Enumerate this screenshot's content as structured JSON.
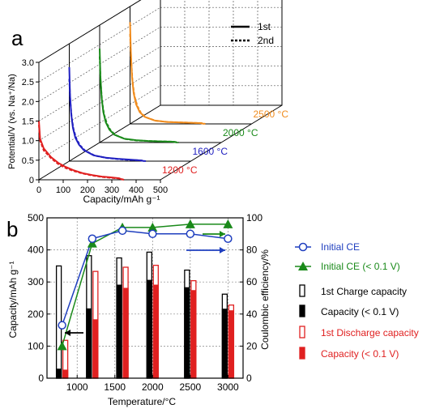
{
  "panel_labels": {
    "a": "a",
    "b": "b"
  },
  "colors": {
    "s1200": "#e02020",
    "s1600": "#2020c0",
    "s2000": "#1a8a1a",
    "s2500": "#f08c1e",
    "black": "#000000",
    "ce_blue": "#1f3fbf",
    "ce_green": "#1a8a1a",
    "red": "#e02020"
  },
  "panel_a": {
    "ylabel": "Potential/V (vs. Na⁺/Na)",
    "xlabel": "Capacity/mAh g⁻¹",
    "legend": {
      "solid": "1st",
      "dashed": "2nd"
    }
  },
  "panel_b": {
    "ylabel_left": "Capacity/mAh g⁻¹",
    "ylabel_right": "Coulombic efficiency/%",
    "xlabel": "Temperature/°C",
    "legend": {
      "ce": "Initial CE",
      "ce01": "Initial CE (< 0.1 V)",
      "charge": "1st Charge capacity",
      "charge01": "Capacity (< 0.1 V)",
      "discharge": "1st Discharge capacity",
      "discharge01": "Capacity (< 0.1 V)"
    }
  },
  "chart_data": [
    {
      "type": "line",
      "panel": "a",
      "layout_3d": "waterfall",
      "xlabel": "Capacity/mAh g⁻¹",
      "ylabel": "Potential/V (vs. Na⁺/Na)",
      "xlim": [
        0,
        500
      ],
      "ylim": [
        0,
        3.0
      ],
      "x_ticks": [
        "0",
        "100",
        "200",
        "300",
        "400",
        "500"
      ],
      "y_ticks": [
        "0",
        "0.5",
        "1.0",
        "1.5",
        "2.0",
        "2.5",
        "3.0"
      ],
      "legend": [
        "1st",
        "2nd"
      ],
      "series": [
        {
          "name": "1200 °C",
          "color": "#e02020",
          "depth_index": 0,
          "first": {
            "x": [
              0,
              5,
              20,
              50,
              80,
              110,
              140,
              180,
              220,
              260,
              300,
              330,
              345
            ],
            "y": [
              1.5,
              1.05,
              0.8,
              0.58,
              0.43,
              0.33,
              0.25,
              0.17,
              0.12,
              0.08,
              0.06,
              0.04,
              0.0
            ]
          },
          "second": {
            "x": [
              0,
              5,
              20,
              50,
              80,
              110,
              140,
              180,
              220,
              260,
              300,
              335,
              350
            ],
            "y": [
              1.4,
              1.0,
              0.75,
              0.55,
              0.4,
              0.3,
              0.23,
              0.16,
              0.11,
              0.07,
              0.05,
              0.03,
              0.0
            ]
          }
        },
        {
          "name": "1600 °C",
          "color": "#2020c0",
          "depth_index": 1,
          "first": {
            "x": [
              0,
              3,
              8,
              15,
              25,
              40,
              60,
              100,
              150,
              200,
              250,
              290,
              310
            ],
            "y": [
              2.4,
              1.7,
              1.2,
              0.85,
              0.6,
              0.42,
              0.28,
              0.15,
              0.09,
              0.06,
              0.04,
              0.02,
              0.0
            ]
          },
          "second": {
            "x": [
              0,
              4,
              10,
              18,
              30,
              45,
              65,
              105,
              155,
              205,
              255,
              295,
              315
            ],
            "y": [
              2.1,
              1.55,
              1.1,
              0.8,
              0.56,
              0.4,
              0.27,
              0.14,
              0.08,
              0.05,
              0.03,
              0.02,
              0.0
            ]
          }
        },
        {
          "name": "2000 °C",
          "color": "#1a8a1a",
          "depth_index": 2,
          "first": {
            "x": [
              0,
              3,
              8,
              15,
              25,
              40,
              60,
              100,
              150,
              200,
              250,
              300,
              320
            ],
            "y": [
              2.4,
              1.7,
              1.15,
              0.78,
              0.52,
              0.33,
              0.2,
              0.1,
              0.06,
              0.04,
              0.03,
              0.02,
              0.0
            ]
          },
          "second": {
            "x": [
              0,
              4,
              10,
              18,
              30,
              45,
              65,
              105,
              155,
              205,
              255,
              305,
              325
            ],
            "y": [
              2.2,
              1.55,
              1.05,
              0.72,
              0.48,
              0.31,
              0.19,
              0.09,
              0.05,
              0.04,
              0.03,
              0.02,
              0.0
            ]
          }
        },
        {
          "name": "2500 °C",
          "color": "#f08c1e",
          "depth_index": 3,
          "first": {
            "x": [
              0,
              3,
              8,
              15,
              25,
              40,
              60,
              100,
              150,
              200,
              250,
              290,
              305
            ],
            "y": [
              2.6,
              1.9,
              1.2,
              0.78,
              0.5,
              0.3,
              0.18,
              0.09,
              0.05,
              0.04,
              0.03,
              0.02,
              0.0
            ]
          },
          "second": {
            "x": [
              0,
              4,
              10,
              18,
              30,
              45,
              65,
              105,
              155,
              205,
              255,
              295,
              310
            ],
            "y": [
              2.3,
              1.7,
              1.1,
              0.72,
              0.46,
              0.28,
              0.17,
              0.08,
              0.05,
              0.04,
              0.03,
              0.02,
              0.0
            ]
          }
        }
      ]
    },
    {
      "type": "bar",
      "panel": "b",
      "xlabel": "Temperature/°C",
      "ylabel": "Capacity/mAh g⁻¹",
      "ylabel_right": "Coulombic efficiency/%",
      "xlim": [
        600,
        3200
      ],
      "ylim": [
        0,
        500
      ],
      "ylim_right": [
        0,
        100
      ],
      "x_ticks": [
        1000,
        1500,
        2000,
        2500,
        3000
      ],
      "y_ticks": [
        0,
        100,
        200,
        300,
        400,
        500
      ],
      "y_ticks_right": [
        0,
        20,
        40,
        60,
        80,
        100
      ],
      "categories": [
        800,
        1200,
        1600,
        2000,
        2500,
        3000
      ],
      "series": [
        {
          "name": "1st Charge capacity",
          "color": "#000000",
          "style": "hollow",
          "values": [
            350,
            382,
            375,
            393,
            337,
            262
          ]
        },
        {
          "name": "Capacity (< 0.1 V)",
          "color": "#000000",
          "style": "filled",
          "values": [
            28,
            216,
            290,
            305,
            282,
            215
          ]
        },
        {
          "name": "1st Discharge capacity",
          "color": "#e02020",
          "style": "hollow",
          "values": [
            118,
            333,
            346,
            352,
            304,
            228
          ]
        },
        {
          "name": "Capacity (< 0.1 V)",
          "color": "#e02020",
          "style": "filled",
          "values": [
            25,
            182,
            280,
            290,
            273,
            210
          ]
        },
        {
          "name": "Initial CE",
          "type": "line",
          "axis": "right",
          "color": "#1f3fbf",
          "marker": "circle",
          "values": [
            33,
            87,
            92,
            90,
            90,
            87
          ]
        },
        {
          "name": "Initial CE (< 0.1 V)",
          "type": "line",
          "axis": "right",
          "color": "#1a8a1a",
          "marker": "triangle",
          "values": [
            20,
            84,
            94,
            94,
            96,
            96
          ]
        }
      ]
    }
  ]
}
